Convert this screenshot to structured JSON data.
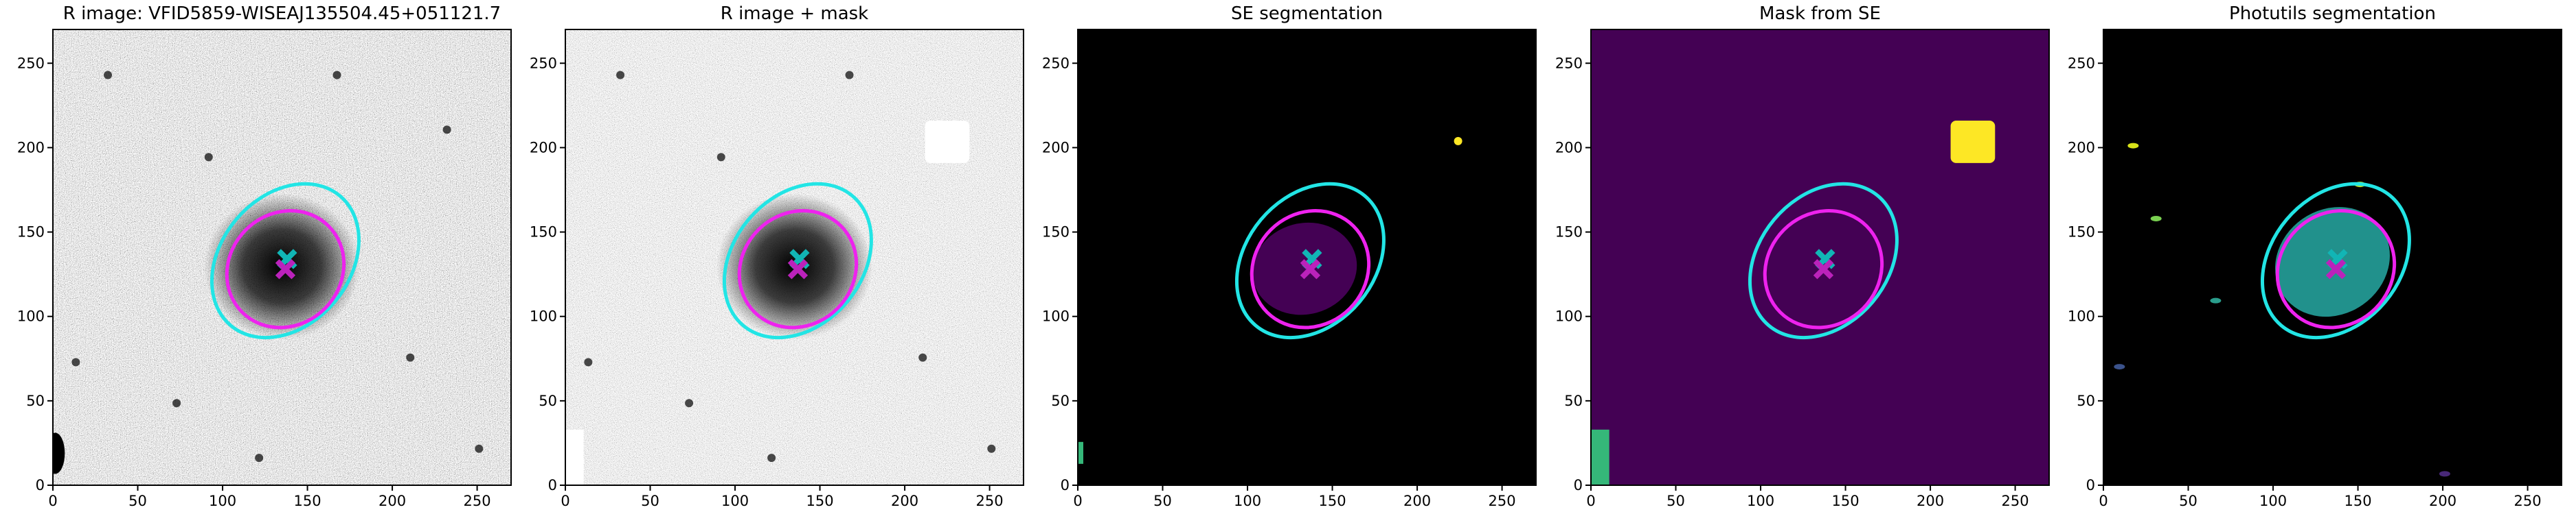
{
  "chart_data": [
    {
      "type": "image",
      "title": "R image: VFID5859-WISEAJ135504.45+051121.7",
      "xlim": [
        0,
        270
      ],
      "ylim": [
        0,
        270
      ],
      "xticks": [
        0,
        50,
        100,
        150,
        200,
        250
      ],
      "yticks": [
        0,
        50,
        100,
        150,
        200,
        250
      ],
      "ellipses": [
        {
          "cx": 137,
          "cy": 133,
          "a": 50,
          "b": 38,
          "angle": 50,
          "color": "#22e5e5"
        },
        {
          "cx": 137,
          "cy": 128,
          "a": 36,
          "b": 33,
          "angle": 45,
          "color": "#ee22ee"
        }
      ],
      "markers": [
        {
          "x": 138,
          "y": 134,
          "color": "#11b5b5"
        },
        {
          "x": 137,
          "y": 128,
          "color": "#bb22bb"
        }
      ]
    },
    {
      "type": "image",
      "title": "R image + mask",
      "xlim": [
        0,
        270
      ],
      "ylim": [
        0,
        270
      ],
      "xticks": [
        0,
        50,
        100,
        150,
        200,
        250
      ],
      "yticks": [
        0,
        50,
        100,
        150,
        200,
        250
      ],
      "ellipses": [
        {
          "cx": 137,
          "cy": 133,
          "a": 50,
          "b": 38,
          "angle": 50,
          "color": "#22e5e5"
        },
        {
          "cx": 137,
          "cy": 128,
          "a": 36,
          "b": 33,
          "angle": 45,
          "color": "#ee22ee"
        }
      ],
      "markers": [
        {
          "x": 138,
          "y": 134,
          "color": "#11b5b5"
        },
        {
          "x": 137,
          "y": 128,
          "color": "#bb22bb"
        }
      ]
    },
    {
      "type": "image",
      "title": "SE segmentation",
      "xlim": [
        0,
        270
      ],
      "ylim": [
        0,
        270
      ],
      "xticks": [
        0,
        50,
        100,
        150,
        200,
        250
      ],
      "yticks": [
        0,
        50,
        100,
        150,
        200,
        250
      ],
      "ellipses": [
        {
          "cx": 137,
          "cy": 133,
          "a": 50,
          "b": 38,
          "angle": 50,
          "color": "#22e5e5"
        },
        {
          "cx": 137,
          "cy": 128,
          "a": 36,
          "b": 33,
          "angle": 45,
          "color": "#ee22ee"
        }
      ],
      "markers": [
        {
          "x": 138,
          "y": 134,
          "color": "#11b5b5"
        },
        {
          "x": 137,
          "y": 128,
          "color": "#bb22bb"
        }
      ]
    },
    {
      "type": "image",
      "title": "Mask from SE",
      "xlim": [
        0,
        270
      ],
      "ylim": [
        0,
        270
      ],
      "xticks": [
        0,
        50,
        100,
        150,
        200,
        250
      ],
      "yticks": [
        0,
        50,
        100,
        150,
        200,
        250
      ],
      "ellipses": [
        {
          "cx": 137,
          "cy": 133,
          "a": 50,
          "b": 38,
          "angle": 50,
          "color": "#22e5e5"
        },
        {
          "cx": 137,
          "cy": 128,
          "a": 36,
          "b": 33,
          "angle": 45,
          "color": "#ee22ee"
        }
      ],
      "markers": [
        {
          "x": 138,
          "y": 134,
          "color": "#11b5b5"
        },
        {
          "x": 137,
          "y": 128,
          "color": "#bb22bb"
        }
      ]
    },
    {
      "type": "image",
      "title": "Photutils segmentation",
      "xlim": [
        0,
        270
      ],
      "ylim": [
        0,
        270
      ],
      "xticks": [
        0,
        50,
        100,
        150,
        200,
        250
      ],
      "yticks": [
        0,
        50,
        100,
        150,
        200,
        250
      ],
      "ellipses": [
        {
          "cx": 137,
          "cy": 133,
          "a": 50,
          "b": 38,
          "angle": 50,
          "color": "#22e5e5"
        },
        {
          "cx": 137,
          "cy": 128,
          "a": 36,
          "b": 33,
          "angle": 45,
          "color": "#ee22ee"
        }
      ],
      "markers": [
        {
          "x": 138,
          "y": 134,
          "color": "#11b5b5"
        },
        {
          "x": 137,
          "y": 128,
          "color": "#bb22bb"
        }
      ]
    }
  ]
}
